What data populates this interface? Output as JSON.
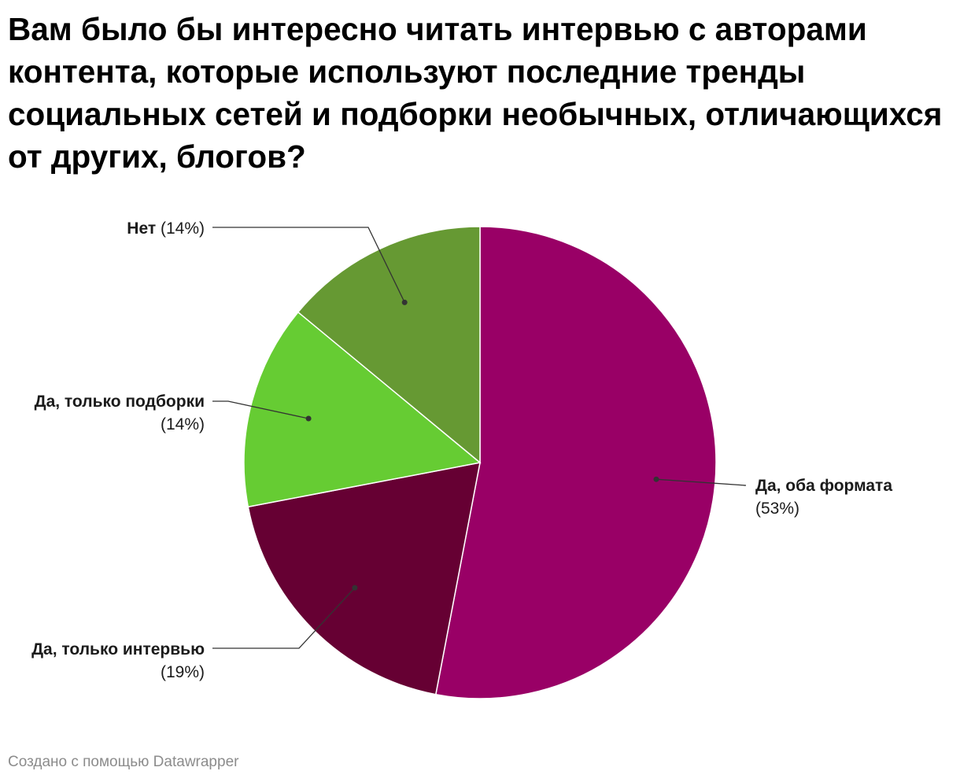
{
  "chart_data": {
    "type": "pie",
    "title": "Вам было бы интересно читать интервью с авторами контента, которые используют последние тренды социальных сетей и подборки необычных, отличающихся от других, блогов?",
    "slices": [
      {
        "label": "Да, оба формата",
        "value": 53,
        "display": "(53%)",
        "color": "#990066"
      },
      {
        "label": "Да, только интервью",
        "value": 19,
        "display": "(19%)",
        "color": "#660033"
      },
      {
        "label": "Да, только подборки",
        "value": 14,
        "display": "(14%)",
        "color": "#66cc33"
      },
      {
        "label": "Нет",
        "value": 14,
        "display": "(14%)",
        "color": "#669933"
      }
    ]
  },
  "footer": {
    "credit": "Создано с помощью Datawrapper"
  }
}
